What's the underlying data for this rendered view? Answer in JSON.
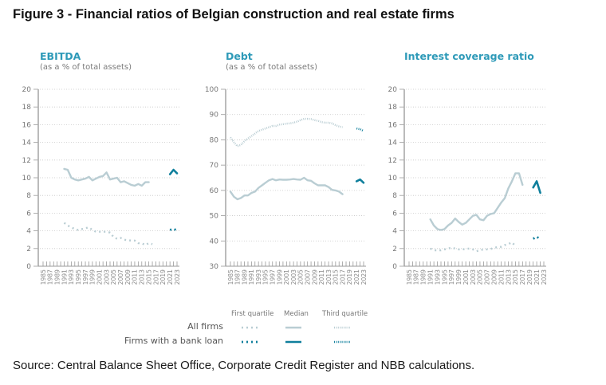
{
  "figure_title": "Figure 3 - Financial ratios of Belgian construction and real estate firms",
  "source": "Source: Central Balance Sheet Office, Corporate Credit Register and NBB calculations.",
  "colors": {
    "all_firms": "#b9cdd3",
    "bank_loan": "#0f7f9c",
    "title_accent": "#2e9ab8",
    "axis": "#aaaaaa"
  },
  "legend": {
    "headers": [
      "First quartile",
      "Median",
      "Third quartile"
    ],
    "rows": [
      "All firms",
      "Firms with a bank loan"
    ]
  },
  "chart_data": [
    {
      "type": "line",
      "title": "EBITDA",
      "subtitle": "(as a % of total assets)",
      "ylim": [
        0,
        20
      ],
      "yticks": [
        0,
        2,
        4,
        6,
        8,
        10,
        12,
        14,
        16,
        18,
        20
      ],
      "x": [
        1985,
        1986,
        1987,
        1988,
        1989,
        1990,
        1991,
        1992,
        1993,
        1994,
        1995,
        1996,
        1997,
        1998,
        1999,
        2000,
        2001,
        2002,
        2003,
        2004,
        2005,
        2006,
        2007,
        2008,
        2009,
        2010,
        2011,
        2012,
        2013,
        2014,
        2015,
        2016,
        2017,
        2018,
        2019,
        2020,
        2021,
        2022,
        2023
      ],
      "xtick_labels": [
        "1985",
        "1987",
        "1989",
        "1991",
        "1993",
        "1995",
        "1997",
        "1999",
        "2001",
        "2003",
        "2005",
        "2007",
        "2009",
        "2011",
        "2013",
        "2015",
        "2017",
        "2019",
        "2021",
        "2023"
      ],
      "grid": true,
      "series": [
        {
          "name": "All firms - First quartile",
          "group": "all",
          "stat": "q1",
          "start": 1991,
          "values": [
            4.9,
            4.6,
            4.4,
            4.2,
            4.1,
            4.2,
            4.3,
            4.4,
            4.1,
            3.9,
            3.9,
            3.9,
            3.9,
            3.8,
            3.3,
            3.1,
            3.2,
            3.0,
            2.95,
            2.9,
            2.9,
            2.6,
            2.6,
            2.4,
            2.6,
            2.5
          ]
        },
        {
          "name": "All firms - Median",
          "group": "all",
          "stat": "median",
          "start": 1991,
          "values": [
            11.0,
            10.9,
            10.0,
            9.8,
            9.7,
            9.8,
            9.9,
            10.1,
            9.7,
            9.9,
            10.1,
            10.2,
            10.6,
            9.8,
            9.9,
            10.0,
            9.5,
            9.6,
            9.4,
            9.2,
            9.1,
            9.3,
            9.1,
            9.5,
            9.5
          ]
        },
        {
          "name": "Bank loan - First quartile",
          "group": "bank",
          "stat": "q1",
          "start": 2021,
          "values": [
            4.1,
            4.25,
            4.0
          ]
        },
        {
          "name": "Bank loan - Median",
          "group": "bank",
          "stat": "median",
          "start": 2021,
          "values": [
            10.4,
            10.9,
            10.5
          ]
        }
      ]
    },
    {
      "type": "line",
      "title": "Debt",
      "subtitle": "(as a % of total assets)",
      "ylim": [
        30,
        100
      ],
      "yticks": [
        30,
        40,
        50,
        60,
        70,
        80,
        90,
        100
      ],
      "x": [
        1985,
        1986,
        1987,
        1988,
        1989,
        1990,
        1991,
        1992,
        1993,
        1994,
        1995,
        1996,
        1997,
        1998,
        1999,
        2000,
        2001,
        2002,
        2003,
        2004,
        2005,
        2006,
        2007,
        2008,
        2009,
        2010,
        2011,
        2012,
        2013,
        2014,
        2015,
        2016,
        2017,
        2018,
        2019,
        2020,
        2021,
        2022,
        2023
      ],
      "xtick_labels": [
        "1985",
        "1987",
        "1989",
        "1991",
        "1993",
        "1995",
        "1997",
        "1999",
        "2001",
        "2003",
        "2005",
        "2007",
        "2009",
        "2011",
        "2013",
        "2015",
        "2017",
        "2019",
        "2021",
        "2023"
      ],
      "grid": true,
      "series": [
        {
          "name": "All firms - Median",
          "group": "all",
          "stat": "median",
          "start": 1985,
          "values": [
            59.5,
            57.5,
            56.5,
            57.0,
            58.0,
            58.0,
            59.0,
            59.5,
            61.0,
            62.0,
            63.0,
            64.0,
            64.5,
            64.0,
            64.3,
            64.2,
            64.2,
            64.3,
            64.5,
            64.3,
            64.2,
            65.0,
            64.0,
            63.8,
            62.8,
            62.0,
            62.0,
            62.0,
            61.3,
            60.2,
            60.0,
            59.5,
            58.5
          ]
        },
        {
          "name": "All firms - Third quartile",
          "group": "all",
          "stat": "q3",
          "start": 1985,
          "values": [
            81.0,
            79.0,
            77.5,
            78.0,
            79.5,
            80.5,
            81.5,
            82.5,
            83.5,
            84.0,
            84.5,
            85.0,
            85.5,
            85.5,
            86.0,
            86.2,
            86.4,
            86.5,
            86.8,
            87.2,
            87.8,
            88.3,
            88.3,
            88.2,
            87.8,
            87.5,
            87.0,
            86.8,
            86.8,
            86.5,
            85.8,
            85.3,
            85.0
          ]
        },
        {
          "name": "Bank loan - Median",
          "group": "bank",
          "stat": "median",
          "start": 2021,
          "values": [
            63.6,
            64.3,
            63.0
          ]
        },
        {
          "name": "Bank loan - Third quartile",
          "group": "bank",
          "stat": "q3",
          "start": 2021,
          "values": [
            84.5,
            84.2,
            83.5
          ]
        }
      ]
    },
    {
      "type": "line",
      "title": "Interest coverage ratio",
      "subtitle": "",
      "ylim": [
        0,
        20
      ],
      "yticks": [
        0,
        2,
        4,
        6,
        8,
        10,
        12,
        14,
        16,
        18,
        20
      ],
      "x": [
        1985,
        1986,
        1987,
        1988,
        1989,
        1990,
        1991,
        1992,
        1993,
        1994,
        1995,
        1996,
        1997,
        1998,
        1999,
        2000,
        2001,
        2002,
        2003,
        2004,
        2005,
        2006,
        2007,
        2008,
        2009,
        2010,
        2011,
        2012,
        2013,
        2014,
        2015,
        2016,
        2017,
        2018,
        2019,
        2020,
        2021,
        2022,
        2023
      ],
      "xtick_labels": [
        "1985",
        "1987",
        "1989",
        "1991",
        "1993",
        "1995",
        "1997",
        "1999",
        "2001",
        "2003",
        "2005",
        "2007",
        "2009",
        "2011",
        "2013",
        "2015",
        "2017",
        "2019",
        "2021",
        "2023"
      ],
      "grid": true,
      "series": [
        {
          "name": "All firms - First quartile",
          "group": "all",
          "stat": "q1",
          "start": 1991,
          "values": [
            2.0,
            1.8,
            1.8,
            1.8,
            1.9,
            2.0,
            2.1,
            2.0,
            1.9,
            1.9,
            1.95,
            2.0,
            1.9,
            1.7,
            1.8,
            1.9,
            1.9,
            1.95,
            2.1,
            2.15,
            2.2,
            2.4,
            2.5,
            2.7,
            2.3
          ]
        },
        {
          "name": "All firms - Median",
          "group": "all",
          "stat": "median",
          "start": 1991,
          "values": [
            5.3,
            4.6,
            4.2,
            4.1,
            4.2,
            4.6,
            4.9,
            5.4,
            5.0,
            4.7,
            4.9,
            5.3,
            5.7,
            5.8,
            5.3,
            5.2,
            5.7,
            5.9,
            6.0,
            6.6,
            7.2,
            7.7,
            8.8,
            9.6,
            10.5,
            10.5,
            9.2
          ]
        },
        {
          "name": "Bank loan - First quartile",
          "group": "bank",
          "stat": "q1",
          "start": 2020,
          "values": [
            3.1,
            3.35,
            3.0
          ]
        },
        {
          "name": "Bank loan - Median",
          "group": "bank",
          "stat": "median",
          "start": 2020,
          "values": [
            8.9,
            9.6,
            8.3
          ]
        }
      ]
    }
  ]
}
